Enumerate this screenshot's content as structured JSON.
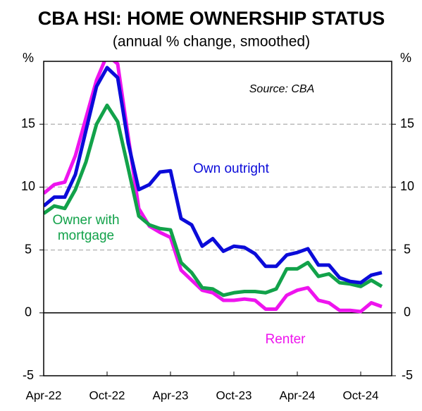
{
  "chart_data": {
    "type": "line",
    "title": "CBA HSI: HOME OWNERSHIP STATUS",
    "subtitle": "(annual % change, smoothed)",
    "y_label": "%",
    "y2_label": "%",
    "source": "Source: CBA",
    "categories": [
      "Apr-22",
      null,
      null,
      null,
      null,
      null,
      "Oct-22",
      null,
      null,
      null,
      null,
      null,
      "Apr-23",
      null,
      null,
      null,
      null,
      null,
      "Oct-23",
      null,
      null,
      null,
      null,
      null,
      "Apr-24",
      null,
      null,
      null,
      null,
      null,
      "Oct-24",
      null,
      null
    ],
    "series": [
      {
        "name": "Own outright",
        "color": "#0b0bd9",
        "values": [
          8.5,
          9.2,
          9.2,
          11,
          14.5,
          18,
          19.5,
          18.7,
          13.5,
          9.8,
          10.2,
          11.2,
          11.3,
          7.5,
          7.0,
          5.3,
          5.9,
          4.9,
          5.3,
          5.2,
          4.7,
          3.7,
          3.7,
          4.6,
          4.8,
          5.1,
          3.8,
          3.8,
          2.8,
          2.5,
          2.4,
          3.0,
          3.2
        ]
      },
      {
        "name": "Owner with mortgage",
        "color": "#12a24a",
        "values": [
          7.9,
          8.5,
          8.3,
          9.8,
          12,
          15,
          16.5,
          15.2,
          11.5,
          7.7,
          7.0,
          6.7,
          6.6,
          4.0,
          3.2,
          2.0,
          1.9,
          1.4,
          1.6,
          1.7,
          1.7,
          1.6,
          1.9,
          3.5,
          3.5,
          4.0,
          2.9,
          3.1,
          2.4,
          2.3,
          2.1,
          2.6,
          2.1
        ]
      },
      {
        "name": "Renter",
        "color": "#ee14ee",
        "values": [
          9.5,
          10.2,
          10.4,
          12.5,
          15.5,
          18.5,
          20.5,
          19.8,
          14,
          8.3,
          6.9,
          6.4,
          6.0,
          3.4,
          2.6,
          1.8,
          1.6,
          1.0,
          1.0,
          1.1,
          1.0,
          0.3,
          0.3,
          1.4,
          1.8,
          2.0,
          1.0,
          0.8,
          0.2,
          0.2,
          0.1,
          0.8,
          0.5
        ]
      }
    ],
    "ylim": [
      -5,
      20
    ],
    "yticks": [
      -5,
      0,
      5,
      10,
      15
    ],
    "grid": true
  }
}
